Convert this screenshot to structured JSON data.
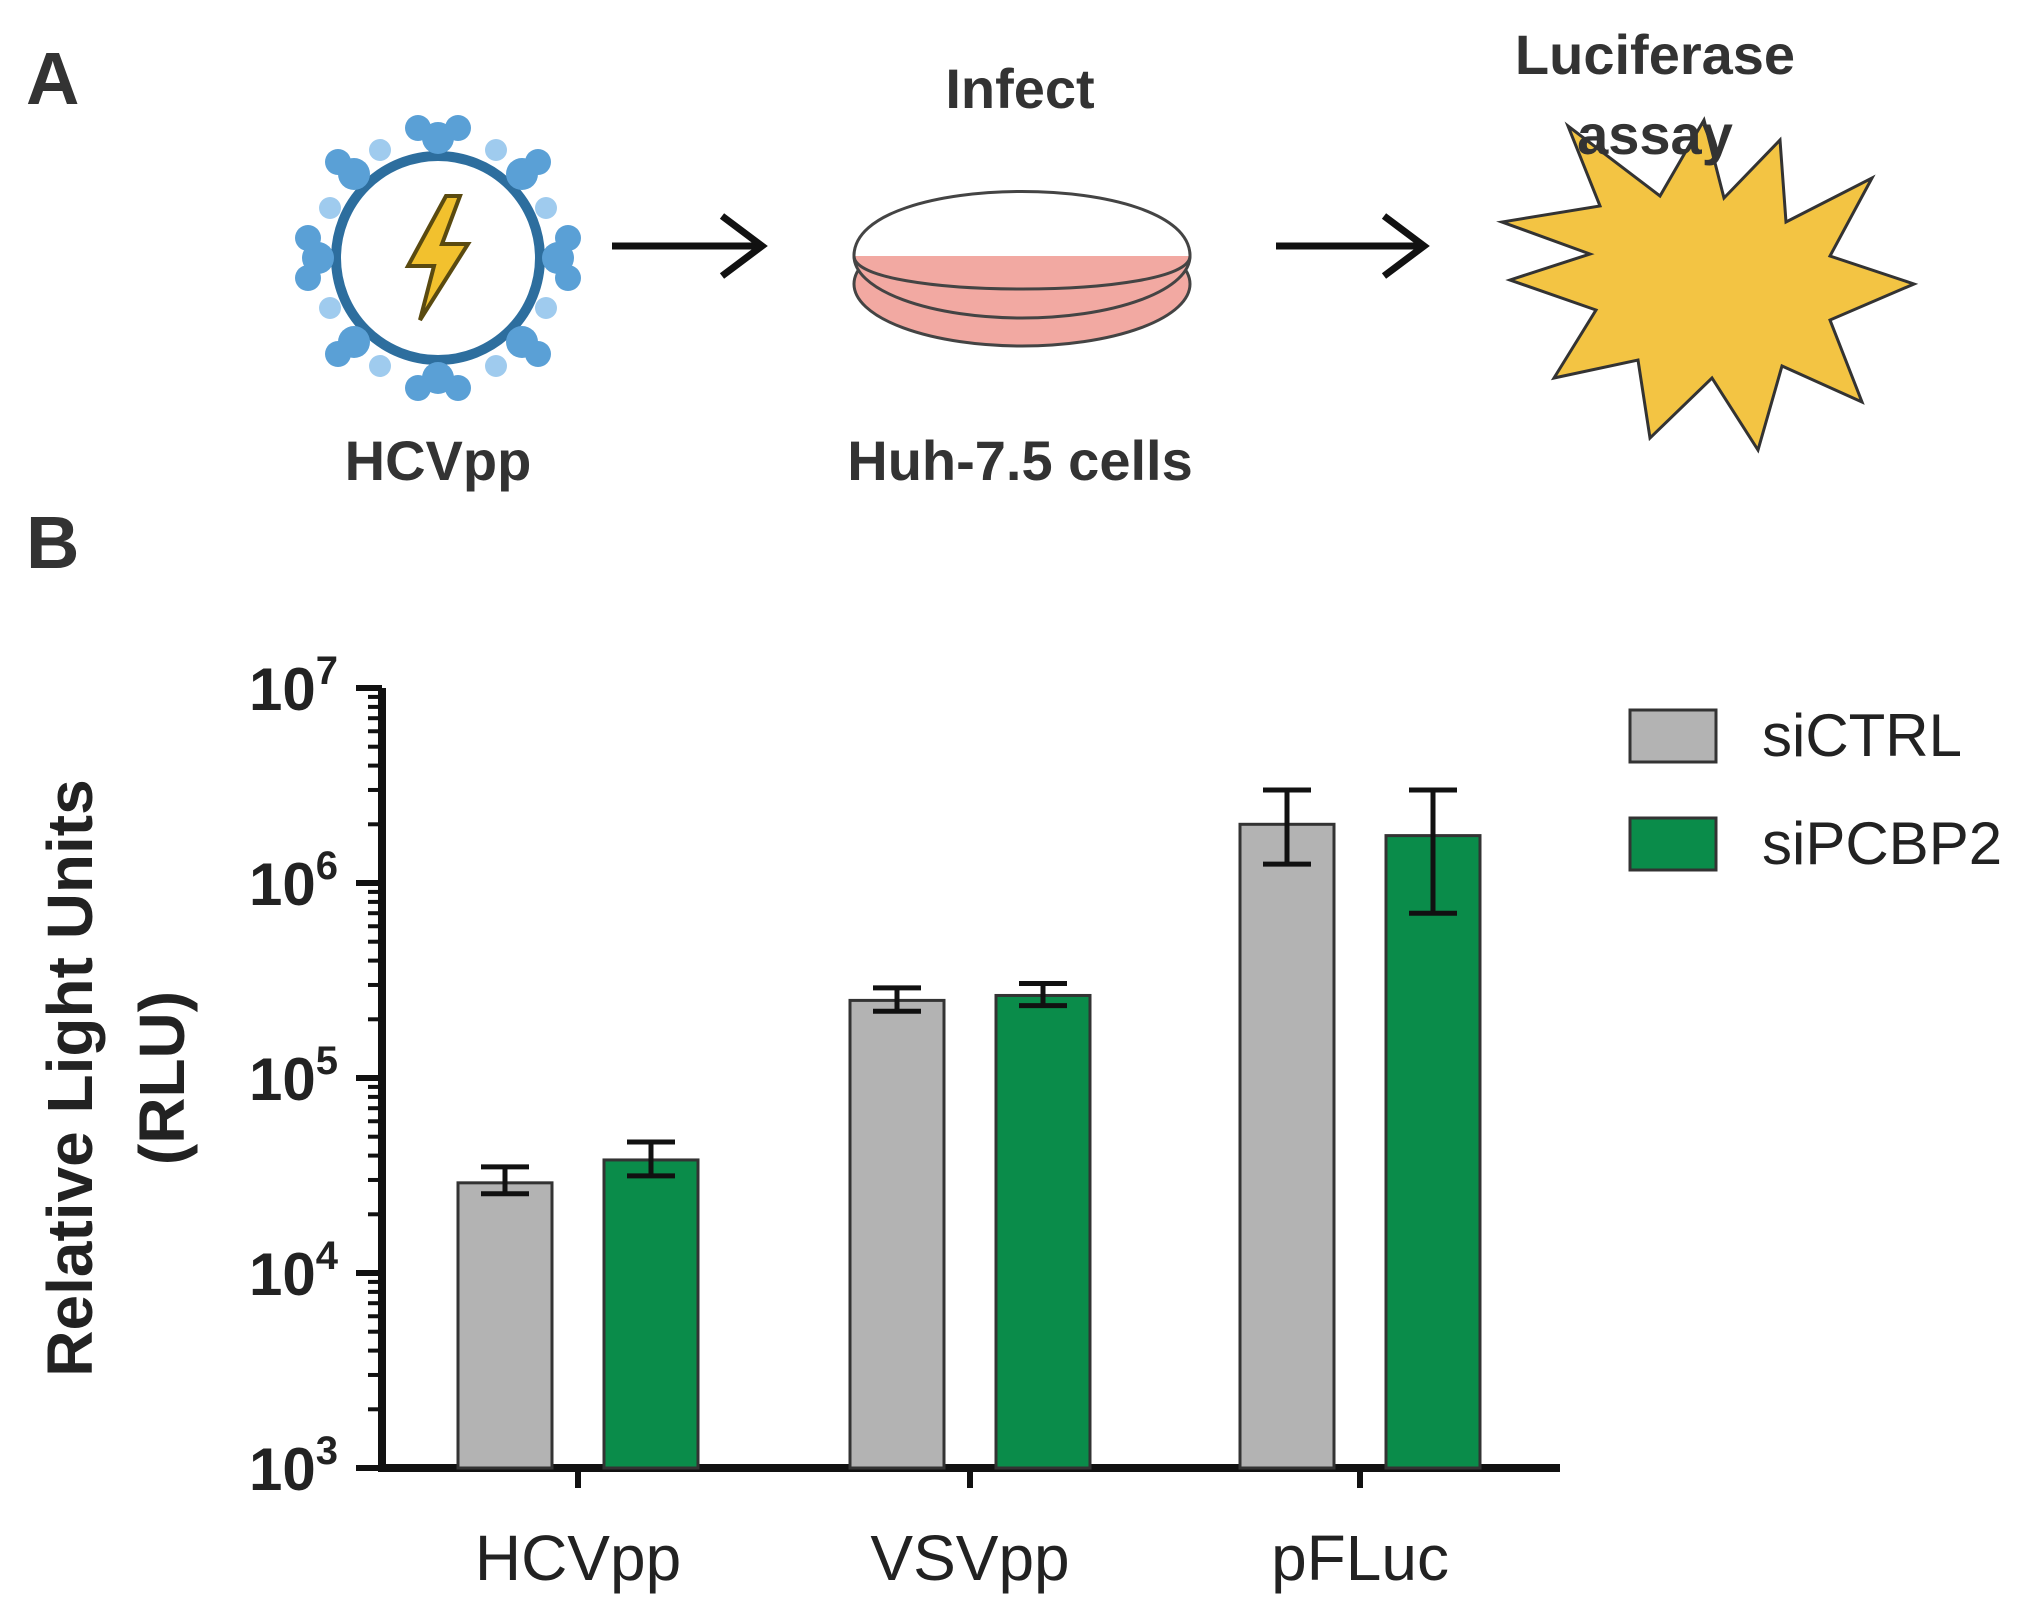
{
  "panels": {
    "a_label": "A",
    "b_label": "B"
  },
  "schematic": {
    "virus_label": "HCVpp",
    "infect_label": "Infect",
    "cells_label": "Huh-7.5 cells",
    "assay_line1": "Luciferase",
    "assay_line2": "assay",
    "colors": {
      "virus": "#3b7fb6",
      "dish_fill": "#f2a9a2",
      "burst": "#f3c443"
    },
    "icons": [
      "virus-icon",
      "arrow-icon",
      "petri-dish-icon",
      "arrow-icon",
      "luminescence-burst-icon"
    ]
  },
  "chart_data": {
    "type": "bar",
    "y_scale": "log",
    "ylim": [
      1000,
      10000000
    ],
    "ylabel_line1": "Relative Light Units",
    "ylabel_line2": "(RLU)",
    "y_ticks": [
      {
        "base": "10",
        "exp": "3",
        "value": 1000
      },
      {
        "base": "10",
        "exp": "4",
        "value": 10000
      },
      {
        "base": "10",
        "exp": "5",
        "value": 100000
      },
      {
        "base": "10",
        "exp": "6",
        "value": 1000000
      },
      {
        "base": "10",
        "exp": "7",
        "value": 10000000
      }
    ],
    "categories": [
      "HCVpp",
      "VSVpp",
      "pFLuc"
    ],
    "series": [
      {
        "name": "siCTRL",
        "color": "#b3b3b3",
        "values": [
          29000,
          250000,
          2000000
        ],
        "err_low": [
          25500,
          220000,
          1250000
        ],
        "err_high": [
          35000,
          290000,
          3000000
        ]
      },
      {
        "name": "siPCBP2",
        "color": "#0a8c4a",
        "values": [
          38000,
          265000,
          1750000
        ],
        "err_low": [
          31500,
          235000,
          700000
        ],
        "err_high": [
          47000,
          305000,
          3000000
        ]
      }
    ],
    "legend_position": "top-right",
    "grid": false
  }
}
